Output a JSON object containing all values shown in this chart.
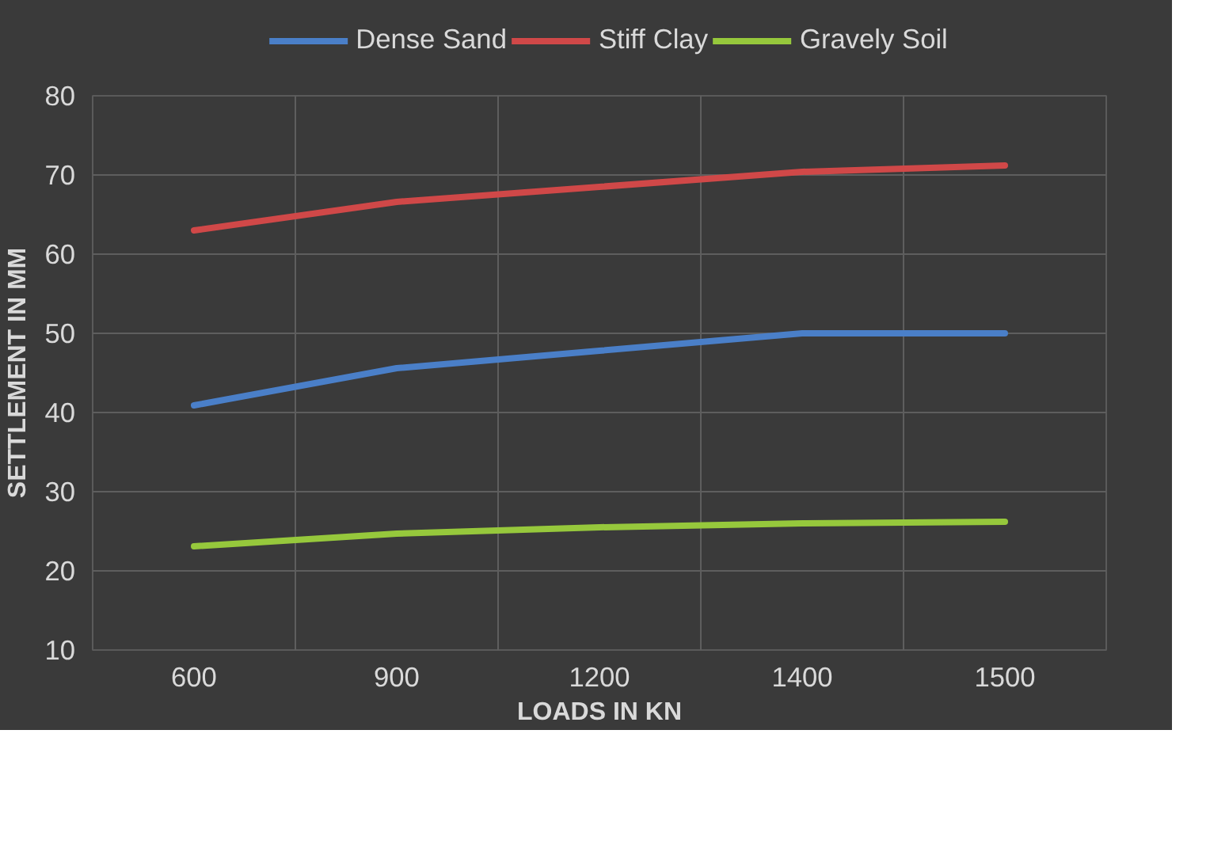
{
  "chart_data": {
    "type": "line",
    "xlabel": "LOADS IN KN",
    "ylabel": "SETTLEMENT IN MM",
    "categories": [
      "600",
      "900",
      "1200",
      "1400",
      "1500"
    ],
    "series": [
      {
        "name": "Dense Sand",
        "color": "#4a7fc8",
        "values": [
          40.9,
          45.6,
          47.8,
          50,
          50
        ]
      },
      {
        "name": "Stiff Clay",
        "color": "#d04848",
        "values": [
          63,
          66.6,
          68.5,
          70.4,
          71.2
        ]
      },
      {
        "name": "Gravely Soil",
        "color": "#96c83c",
        "values": [
          23.1,
          24.7,
          25.5,
          26,
          26.2
        ]
      }
    ],
    "ylim": [
      10,
      80
    ],
    "yticks": [
      10,
      20,
      30,
      40,
      50,
      60,
      70,
      80
    ],
    "grid": true,
    "legend": "top",
    "marker": "none",
    "line_style": "solid"
  }
}
